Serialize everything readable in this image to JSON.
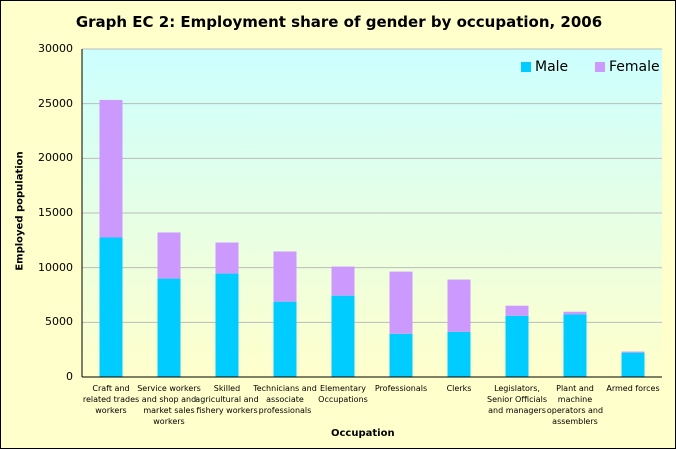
{
  "chart_data": {
    "type": "bar",
    "stacked": true,
    "title": "Graph EC 2: Employment share of gender by occupation, 2006",
    "xlabel": "Occupation",
    "ylabel": "Employed population",
    "ylim": [
      0,
      30000
    ],
    "yticks": [
      "0",
      "5000",
      "10000",
      "15000",
      "20000",
      "25000",
      "30000"
    ],
    "grid": true,
    "legend": "top-right",
    "categories": [
      "Craft and related trades workers",
      "Service workers and shop and market sales workers",
      "Skilled agricultural and fishery workers",
      "Technicians and associate professionals",
      "Elementary Occupations",
      "Professionals",
      "Clerks",
      "Legislators, Senior Officials and managers",
      "Plant and machine operators and assemblers",
      "Armed forces"
    ],
    "series": [
      {
        "name": "Male",
        "color": "#00CCFF",
        "values": [
          12760,
          9000,
          9460,
          6890,
          7440,
          3950,
          4130,
          5600,
          5720,
          2230
        ]
      },
      {
        "name": "Female",
        "color": "#CC99FF",
        "values": [
          12580,
          4220,
          2840,
          4590,
          2660,
          5690,
          4780,
          920,
          250,
          100
        ]
      }
    ]
  }
}
